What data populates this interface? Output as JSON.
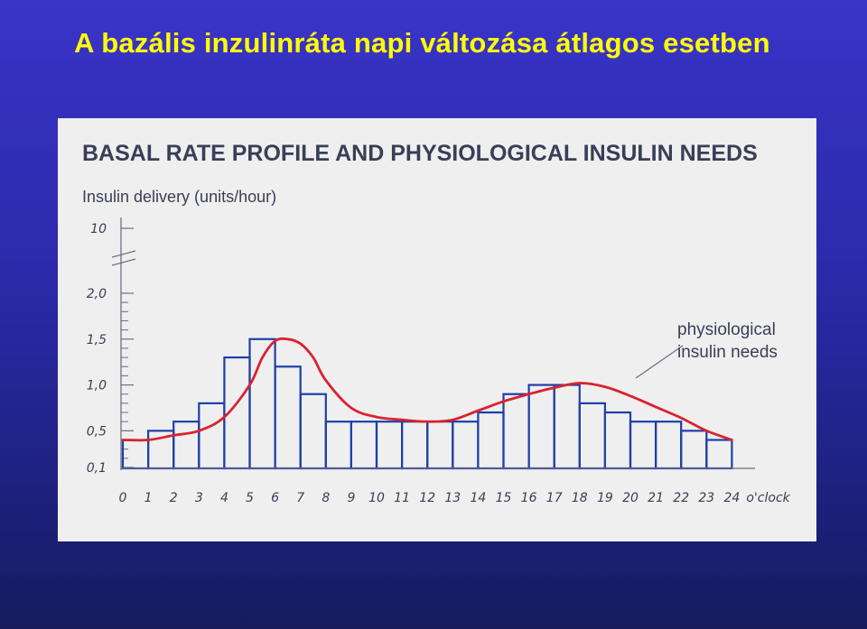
{
  "slide": {
    "title": "A bazális inzulinráta napi változása átlagos esetben"
  },
  "chart_data": {
    "type": "bar",
    "title": "BASAL RATE PROFILE AND PHYSIOLOGICAL INSULIN NEEDS",
    "ylabel": "Insulin delivery (units/hour)",
    "xlabel": "",
    "x_unit_label": "o'clock",
    "x_ticks": [
      "0",
      "1",
      "2",
      "3",
      "4",
      "5",
      "6",
      "7",
      "8",
      "9",
      "10",
      "11",
      "12",
      "13",
      "14",
      "15",
      "16",
      "17",
      "18",
      "19",
      "20",
      "21",
      "22",
      "23",
      "24"
    ],
    "y_ticks": [
      {
        "label": "0,1",
        "value": 0.1
      },
      {
        "label": "0,5",
        "value": 0.5
      },
      {
        "label": "1,0",
        "value": 1.0
      },
      {
        "label": "1,5",
        "value": 1.5
      },
      {
        "label": "2,0",
        "value": 2.0
      },
      {
        "label": "10",
        "value": 10
      }
    ],
    "y_axis_break": true,
    "ylim": [
      0.1,
      2.0
    ],
    "series": [
      {
        "type": "bar",
        "hour_start": [
          0,
          1,
          2,
          3,
          4,
          5,
          6,
          7,
          8,
          9,
          10,
          11,
          12,
          13,
          14,
          15,
          16,
          17,
          18,
          19,
          20,
          21,
          22,
          23
        ],
        "values": [
          0.4,
          0.5,
          0.6,
          0.8,
          1.3,
          1.5,
          1.2,
          0.9,
          0.6,
          0.6,
          0.6,
          0.6,
          0.6,
          0.6,
          0.7,
          0.9,
          1.0,
          1.0,
          0.8,
          0.7,
          0.6,
          0.6,
          0.5,
          0.4
        ],
        "color": "#1e3fa8"
      },
      {
        "name": "physiological insulin needs",
        "type": "line",
        "x": [
          0,
          1,
          2,
          3,
          4,
          5,
          5.5,
          6,
          6.5,
          7,
          7.5,
          8,
          9,
          10,
          11,
          12,
          13,
          14,
          15,
          16,
          17,
          18,
          19,
          20,
          21,
          22,
          23,
          24
        ],
        "values": [
          0.4,
          0.4,
          0.45,
          0.5,
          0.65,
          1.0,
          1.3,
          1.48,
          1.5,
          1.45,
          1.3,
          1.05,
          0.75,
          0.65,
          0.62,
          0.6,
          0.62,
          0.72,
          0.82,
          0.9,
          0.97,
          1.02,
          0.98,
          0.88,
          0.76,
          0.64,
          0.5,
          0.4
        ],
        "color": "#d9232e"
      }
    ],
    "annotation": {
      "lines": [
        "physiological",
        "insulin needs"
      ]
    }
  }
}
